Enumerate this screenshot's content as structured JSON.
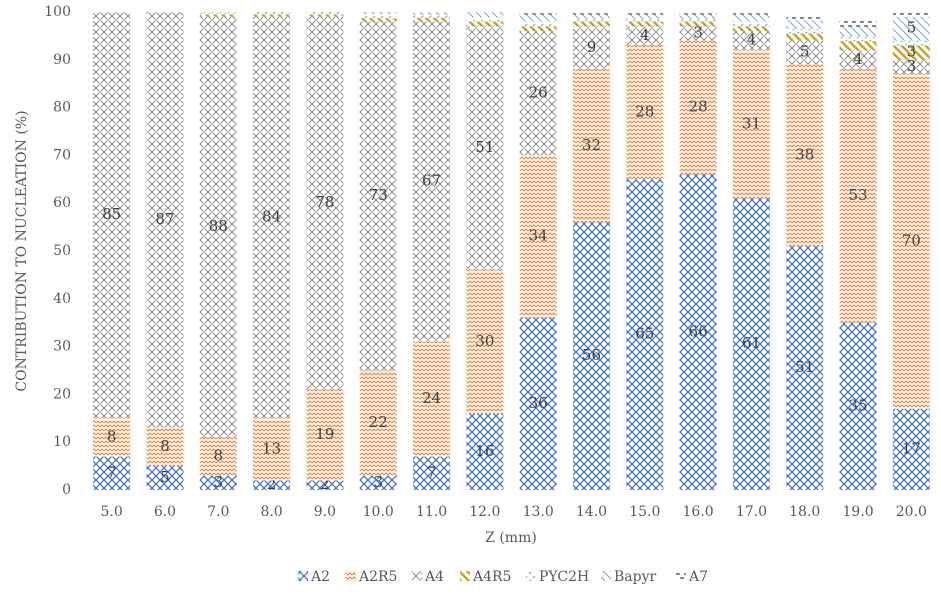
{
  "chart_data": {
    "type": "stacked_bar",
    "x_label": "Z (mm)",
    "y_label": "CONTRIBUTION TO NUCLEATION (%)",
    "categories": [
      "5.0",
      "6.0",
      "7.0",
      "8.0",
      "9.0",
      "10.0",
      "11.0",
      "12.0",
      "13.0",
      "14.0",
      "15.0",
      "16.0",
      "17.0",
      "18.0",
      "19.0",
      "20.0"
    ],
    "ylim": [
      0,
      100
    ],
    "yticks": [
      0,
      10,
      20,
      30,
      40,
      50,
      60,
      70,
      80,
      90,
      100
    ],
    "legend": "bottom",
    "series": [
      {
        "name": "A2",
        "color": "#4472c4",
        "values": [
          7,
          5,
          3,
          2,
          2,
          3,
          7,
          16,
          36,
          56,
          65,
          66,
          61,
          51,
          35,
          17
        ]
      },
      {
        "name": "A2R5",
        "color": "#ed7d31",
        "values": [
          8,
          8,
          8,
          13,
          19,
          22,
          24,
          30,
          34,
          32,
          28,
          28,
          31,
          38,
          53,
          70
        ]
      },
      {
        "name": "A4",
        "color": "#7f7f7f",
        "values": [
          85,
          87,
          88,
          84,
          78,
          73,
          67,
          51,
          26,
          9,
          4,
          3,
          4,
          5,
          4,
          3
        ]
      },
      {
        "name": "A4R5",
        "color": "#c9a227",
        "values": [
          0,
          0,
          0.5,
          0.5,
          0.5,
          0.7,
          0.8,
          1,
          1,
          1,
          1,
          1,
          1,
          1.5,
          1.9,
          3
        ]
      },
      {
        "name": "PYC2H",
        "color": "#5b9bd5",
        "values": [
          0,
          0,
          0.3,
          0.5,
          0.5,
          0.8,
          0.5,
          0.8,
          1,
          0.5,
          0.5,
          0.5,
          1,
          1,
          1,
          1
        ]
      },
      {
        "name": "Bapyr",
        "color": "#7aa6d8",
        "values": [
          0,
          0,
          0.2,
          0,
          0,
          0.5,
          0.7,
          1.2,
          1.5,
          1,
          1,
          1,
          1.5,
          1.8,
          1.9,
          5
        ]
      },
      {
        "name": "A7",
        "color": "#404040",
        "values": [
          0,
          0,
          0,
          0,
          0,
          0,
          0,
          0,
          0.5,
          0.5,
          0.5,
          0.5,
          0.5,
          1,
          1.5,
          1
        ]
      }
    ]
  }
}
